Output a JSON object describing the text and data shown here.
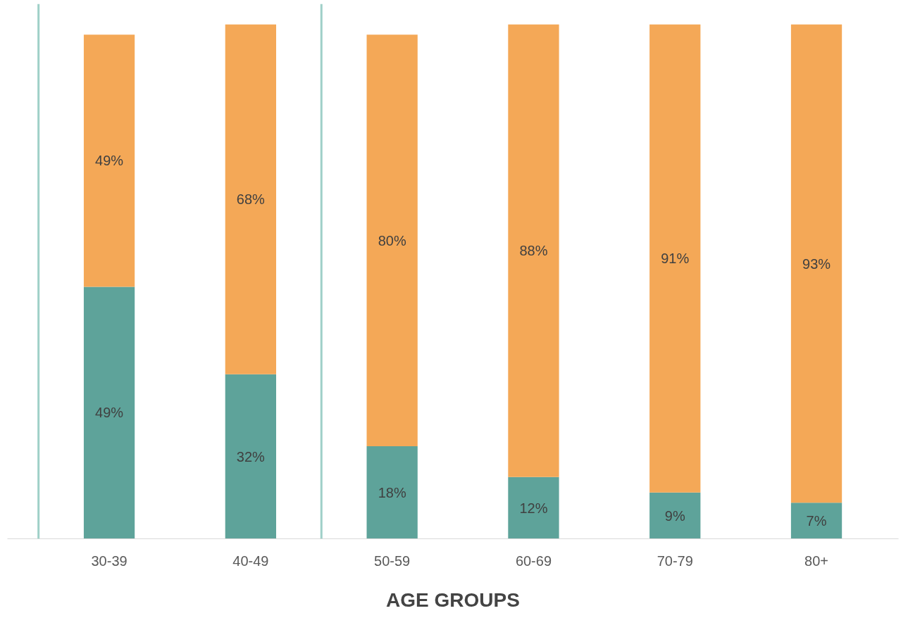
{
  "chart_data": {
    "type": "bar",
    "stacked": true,
    "xlabel": "AGE GROUPS",
    "categories": [
      "30-39",
      "40-49",
      "50-59",
      "60-69",
      "70-79",
      "80+"
    ],
    "series": [
      {
        "color": "#5ea39a",
        "values": [
          49,
          32,
          18,
          12,
          9,
          7
        ],
        "value_labels": [
          "49%",
          "32%",
          "18%",
          "12%",
          "9%",
          "7%"
        ]
      },
      {
        "color": "#f4a857",
        "values": [
          49,
          68,
          80,
          88,
          91,
          93
        ],
        "value_labels": [
          "49%",
          "68%",
          "80%",
          "88%",
          "91%",
          "93%"
        ]
      }
    ],
    "grid": false,
    "tick_labels": "x"
  }
}
